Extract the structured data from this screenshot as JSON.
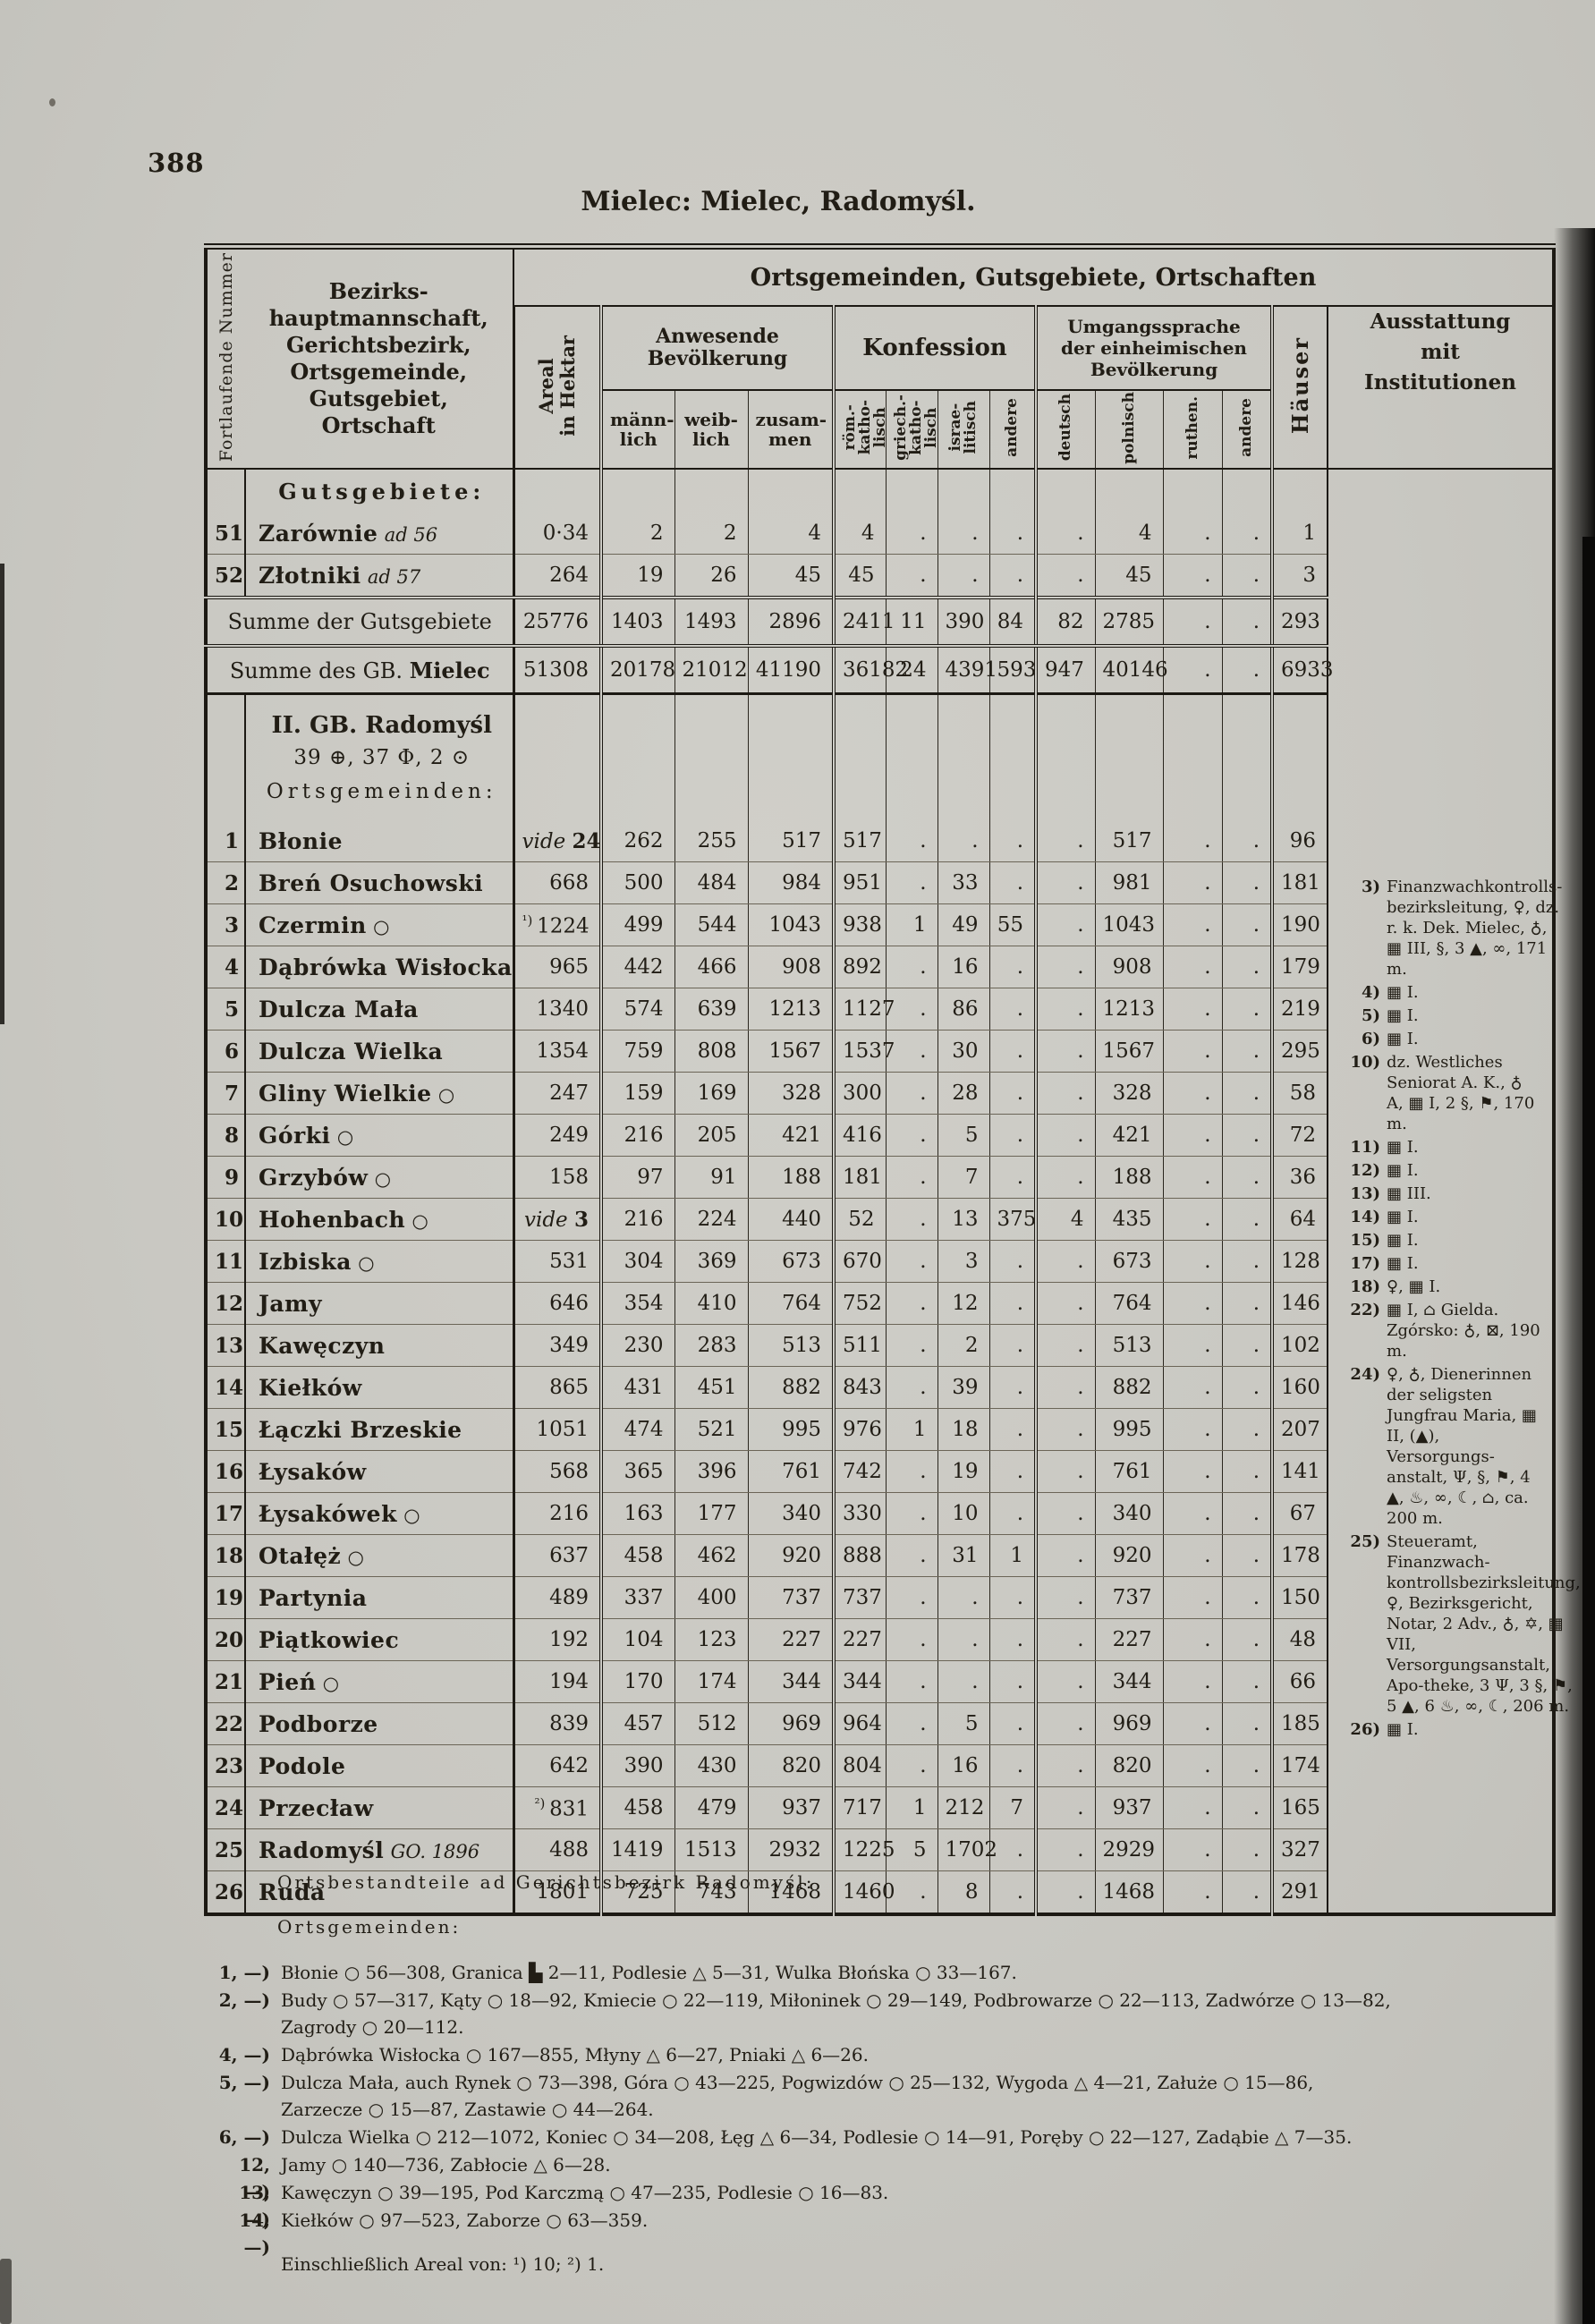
{
  "page": {
    "number": "388",
    "title": "Mielec: Mielec, Radomyśl."
  },
  "symbols": {
    "village-icon": "○",
    "hamlet-icon": "△",
    "manor-icon": "▙",
    "parish-office-icon": "♀",
    "church-icon": "♁",
    "school-icon": "▦",
    "savings-icon": "§",
    "chapel-icon": "▲",
    "post-horn-icon": "∞",
    "telegraph-icon": "☾",
    "flag-icon": "⚑",
    "synagogue-icon": "✡",
    "market-icon": "Ψ",
    "fire-brigade-icon": "♨",
    "house-icon": "⌂",
    "mail-icon": "⊠",
    "commune-icon": "⊕",
    "locality-icon": "Φ",
    "estate-icon": "⊙"
  },
  "table": {
    "header": {
      "nr_label": "Fortlaufende Nummer",
      "name_label": "Bezirks-\nhauptmannschaft,\nGerichtsbezirk,\nOrtsgemeinde,\nGutsgebiet,\nOrtschaft",
      "span_title": "Ortsgemeinden, Gutsgebiete, Ortschaften",
      "areal_label": "Areal\nin Hektar",
      "bev_group": "Anwesende\nBevölkerung",
      "bev_cols": [
        "männ-\nlich",
        "weib-\nlich",
        "zusam-\nmen"
      ],
      "konf_group": "Konfession",
      "konf_cols": [
        "röm.-\nkatho-\nlisch",
        "griech.-\nkatho-\nlisch",
        "israe-\nlitisch",
        "andere"
      ],
      "spr_group": "Umgangssprache\nder einheimischen\nBevölkerung",
      "spr_cols": [
        "deutsch",
        "polnisch",
        "ruthen.",
        "andere"
      ],
      "haeuser_label": "Häuser",
      "ausst_label": "Ausstattung\nmit\nInstitutionen"
    },
    "body": [
      {
        "kind": "label",
        "text": "Gutsgebiete:"
      },
      {
        "kind": "data",
        "nr": "51",
        "name": "Zarównie",
        "name_note": "ad 56",
        "areal": "0·34",
        "vals": [
          "2",
          "2",
          "4",
          "4",
          ".",
          ".",
          ".",
          ".",
          "4",
          ".",
          ".",
          "1"
        ]
      },
      {
        "kind": "data",
        "nr": "52",
        "name": "Złotniki",
        "name_note": "ad 57",
        "areal": "264",
        "vals": [
          "19",
          "26",
          "45",
          "45",
          ".",
          ".",
          ".",
          ".",
          "45",
          ".",
          ".",
          "3"
        ]
      },
      {
        "kind": "sum",
        "cls": "sum1",
        "label_prefix": "Summe der Gutsgebiete",
        "label_bold": "",
        "areal": "25776",
        "vals": [
          "1403",
          "1493",
          "2896",
          "2411",
          "11",
          "390",
          "84",
          "82",
          "2785",
          ".",
          ".",
          "293"
        ]
      },
      {
        "kind": "sum",
        "cls": "sum2",
        "label_prefix": "Summe des GB. ",
        "label_bold": "Mielec",
        "areal": "51308",
        "vals": [
          "20178",
          "21012",
          "41190",
          "36182",
          "24",
          "4391",
          "593",
          "947",
          "40146",
          ".",
          ".",
          "6933"
        ]
      },
      {
        "kind": "secblock",
        "lines": [
          "II. GB. Radomyśl",
          "39 ⊕, 37 Φ, 2 ⊙",
          "Ortsgemeinden:"
        ]
      },
      {
        "kind": "data",
        "nr": "1",
        "name": "Błonie",
        "areal_vide": "24",
        "vals": [
          "262",
          "255",
          "517",
          "517",
          ".",
          ".",
          ".",
          ".",
          "517",
          ".",
          ".",
          "96"
        ]
      },
      {
        "kind": "data",
        "nr": "2",
        "name": "Breń Osuchowski",
        "areal": "668",
        "vals": [
          "500",
          "484",
          "984",
          "951",
          ".",
          "33",
          ".",
          ".",
          "981",
          ".",
          ".",
          "181"
        ]
      },
      {
        "kind": "data",
        "nr": "3",
        "name": "Czermin",
        "suffix": "○",
        "areal_prefix": "¹) ",
        "areal": "1224",
        "vals": [
          "499",
          "544",
          "1043",
          "938",
          "1",
          "49",
          "55",
          ".",
          "1043",
          ".",
          ".",
          "190"
        ]
      },
      {
        "kind": "data",
        "nr": "4",
        "name": "Dąbrówka Wisłocka",
        "areal": "965",
        "vals": [
          "442",
          "466",
          "908",
          "892",
          ".",
          "16",
          ".",
          ".",
          "908",
          ".",
          ".",
          "179"
        ]
      },
      {
        "kind": "data",
        "nr": "5",
        "name": "Dulcza Mała",
        "areal": "1340",
        "vals": [
          "574",
          "639",
          "1213",
          "1127",
          ".",
          "86",
          ".",
          ".",
          "1213",
          ".",
          ".",
          "219"
        ]
      },
      {
        "kind": "data",
        "nr": "6",
        "name": "Dulcza Wielka",
        "areal": "1354",
        "vals": [
          "759",
          "808",
          "1567",
          "1537",
          ".",
          "30",
          ".",
          ".",
          "1567",
          ".",
          ".",
          "295"
        ]
      },
      {
        "kind": "data",
        "nr": "7",
        "name": "Gliny Wielkie",
        "suffix": "○",
        "areal": "247",
        "vals": [
          "159",
          "169",
          "328",
          "300",
          ".",
          "28",
          ".",
          ".",
          "328",
          ".",
          ".",
          "58"
        ]
      },
      {
        "kind": "data",
        "nr": "8",
        "name": "Górki",
        "suffix": "○",
        "areal": "249",
        "vals": [
          "216",
          "205",
          "421",
          "416",
          ".",
          "5",
          ".",
          ".",
          "421",
          ".",
          ".",
          "72"
        ]
      },
      {
        "kind": "data",
        "nr": "9",
        "name": "Grzybów",
        "suffix": "○",
        "areal": "158",
        "vals": [
          "97",
          "91",
          "188",
          "181",
          ".",
          "7",
          ".",
          ".",
          "188",
          ".",
          ".",
          "36"
        ]
      },
      {
        "kind": "data",
        "nr": "10",
        "name": "Hohenbach",
        "suffix": "○",
        "areal_vide": "3",
        "vals": [
          "216",
          "224",
          "440",
          "52",
          ".",
          "13",
          "375",
          "4",
          "435",
          ".",
          ".",
          "64"
        ]
      },
      {
        "kind": "data",
        "nr": "11",
        "name": "Izbiska",
        "suffix": "○",
        "areal": "531",
        "vals": [
          "304",
          "369",
          "673",
          "670",
          ".",
          "3",
          ".",
          ".",
          "673",
          ".",
          ".",
          "128"
        ]
      },
      {
        "kind": "data",
        "nr": "12",
        "name": "Jamy",
        "areal": "646",
        "vals": [
          "354",
          "410",
          "764",
          "752",
          ".",
          "12",
          ".",
          ".",
          "764",
          ".",
          ".",
          "146"
        ]
      },
      {
        "kind": "data",
        "nr": "13",
        "name": "Kawęczyn",
        "areal": "349",
        "vals": [
          "230",
          "283",
          "513",
          "511",
          ".",
          "2",
          ".",
          ".",
          "513",
          ".",
          ".",
          "102"
        ]
      },
      {
        "kind": "data",
        "nr": "14",
        "name": "Kiełków",
        "areal": "865",
        "vals": [
          "431",
          "451",
          "882",
          "843",
          ".",
          "39",
          ".",
          ".",
          "882",
          ".",
          ".",
          "160"
        ]
      },
      {
        "kind": "data",
        "nr": "15",
        "name": "Łączki Brzeskie",
        "areal": "1051",
        "vals": [
          "474",
          "521",
          "995",
          "976",
          "1",
          "18",
          ".",
          ".",
          "995",
          ".",
          ".",
          "207"
        ]
      },
      {
        "kind": "data",
        "nr": "16",
        "name": "Łysaków",
        "areal": "568",
        "vals": [
          "365",
          "396",
          "761",
          "742",
          ".",
          "19",
          ".",
          ".",
          "761",
          ".",
          ".",
          "141"
        ]
      },
      {
        "kind": "data",
        "nr": "17",
        "name": "Łysakówek",
        "suffix": "○",
        "areal": "216",
        "vals": [
          "163",
          "177",
          "340",
          "330",
          ".",
          "10",
          ".",
          ".",
          "340",
          ".",
          ".",
          "67"
        ]
      },
      {
        "kind": "data",
        "nr": "18",
        "name": "Otałęż",
        "suffix": "○",
        "areal": "637",
        "vals": [
          "458",
          "462",
          "920",
          "888",
          ".",
          "31",
          "1",
          ".",
          "920",
          ".",
          ".",
          "178"
        ]
      },
      {
        "kind": "data",
        "nr": "19",
        "name": "Partynia",
        "areal": "489",
        "vals": [
          "337",
          "400",
          "737",
          "737",
          ".",
          ".",
          ".",
          ".",
          "737",
          ".",
          ".",
          "150"
        ]
      },
      {
        "kind": "data",
        "nr": "20",
        "name": "Piątkowiec",
        "areal": "192",
        "vals": [
          "104",
          "123",
          "227",
          "227",
          ".",
          ".",
          ".",
          ".",
          "227",
          ".",
          ".",
          "48"
        ]
      },
      {
        "kind": "data",
        "nr": "21",
        "name": "Pień",
        "suffix": "○",
        "areal": "194",
        "vals": [
          "170",
          "174",
          "344",
          "344",
          ".",
          ".",
          ".",
          ".",
          "344",
          ".",
          ".",
          "66"
        ]
      },
      {
        "kind": "data",
        "nr": "22",
        "name": "Podborze",
        "areal": "839",
        "vals": [
          "457",
          "512",
          "969",
          "964",
          ".",
          "5",
          ".",
          ".",
          "969",
          ".",
          ".",
          "185"
        ]
      },
      {
        "kind": "data",
        "nr": "23",
        "name": "Podole",
        "areal": "642",
        "vals": [
          "390",
          "430",
          "820",
          "804",
          ".",
          "16",
          ".",
          ".",
          "820",
          ".",
          ".",
          "174"
        ]
      },
      {
        "kind": "data",
        "nr": "24",
        "name": "Przecław",
        "areal_prefix": "²) ",
        "areal": "831",
        "vals": [
          "458",
          "479",
          "937",
          "717",
          "1",
          "212",
          "7",
          ".",
          "937",
          ".",
          ".",
          "165"
        ]
      },
      {
        "kind": "data",
        "nr": "25",
        "name": "Radomyśl",
        "name_note": "GO. 1896",
        "areal": "488",
        "vals": [
          "1419",
          "1513",
          "2932",
          "1225",
          "5",
          "1702",
          ".",
          ".",
          "2929",
          ".",
          ".",
          "327"
        ]
      },
      {
        "kind": "data",
        "nr": "26",
        "name": "Ruda",
        "areal": "1801",
        "vals": [
          "725",
          "743",
          "1468",
          "1460",
          ".",
          "8",
          ".",
          ".",
          "1468",
          ".",
          ".",
          "291"
        ]
      }
    ]
  },
  "notes": {
    "items": [
      {
        "num": "3)",
        "text": "Finanzwachkontrolls-bezirksleitung, ♀, dz. r. k. Dek. Mielec, ♁, ▦ III, §, 3 ▲, ∞, 171 m."
      },
      {
        "num": "4)",
        "text": "▦ I."
      },
      {
        "num": "5)",
        "text": "▦ I."
      },
      {
        "num": "6)",
        "text": "▦ I."
      },
      {
        "num": "10)",
        "text": "dz. Westliches Seniorat A. K., ♁ A, ▦ I, 2 §, ⚑, 170 m."
      },
      {
        "num": "11)",
        "text": "▦ I."
      },
      {
        "num": "12)",
        "text": "▦ I."
      },
      {
        "num": "13)",
        "text": "▦ III."
      },
      {
        "num": "14)",
        "text": "▦ I."
      },
      {
        "num": "15)",
        "text": "▦ I."
      },
      {
        "num": "17)",
        "text": "▦ I."
      },
      {
        "num": "18)",
        "text": "♀, ▦ I."
      },
      {
        "num": "22)",
        "text": "▦ I, ⌂ Gielda.\nZgórsko: ♁, ⊠, 190 m."
      },
      {
        "num": "24)",
        "text": "♀, ♁, Dienerinnen der seligsten Jungfrau Maria, ▦ II, (▲), Versorgungs-anstalt, Ψ, §, ⚑, 4 ▲, ♨, ∞, ☾, ⌂, ca. 200 m."
      },
      {
        "num": "25)",
        "text": "Steueramt, Finanzwach-kontrollsbezirksleitung, ♀, Bezirksgericht, Notar, 2 Adv., ♁, ✡, ▦ VII, Versorgungsanstalt, Apo-theke, 3 Ψ, 3 §, ⚑, 5 ▲, 6 ♨, ∞, ☾, 206 m."
      },
      {
        "num": "26)",
        "text": "▦ I."
      }
    ]
  },
  "footer": {
    "heading": "Ortsbestandteile ad Gerichtsbezirk Radomyśl:",
    "subheading": "Ortsgemeinden:",
    "items": [
      {
        "num": "1, —)",
        "text": "Błonie ○ 56—308, Granica ▙ 2—11, Podlesie △ 5—31, Wulka Błońska ○ 33—167."
      },
      {
        "num": "2, —)",
        "text": "Budy ○ 57—317, Kąty ○ 18—92, Kmiecie ○ 22—119, Miłoninek ○ 29—149, Podbrowarze ○ 22—113, Zadwórze ○ 13—82, Zagrody ○ 20—112."
      },
      {
        "num": "4, —)",
        "text": "Dąbrówka Wisłocka ○ 167—855, Młyny △ 6—27, Pniaki △ 6—26."
      },
      {
        "num": "5, —)",
        "text": "Dulcza Mała, auch Rynek ○ 73—398, Góra ○ 43—225, Pogwizdów ○ 25—132, Wygoda △ 4—21, Załuże ○ 15—86, Zarzecze ○ 15—87, Zastawie ○ 44—264."
      },
      {
        "num": "6, —)",
        "text": "Dulcza Wielka ○ 212—1072, Koniec ○ 34—208, Łęg △ 6—34, Podlesie ○ 14—91, Poręby ○ 22—127, Zadąbie △ 7—35."
      },
      {
        "num": "12, —)",
        "text": "Jamy ○ 140—736, Zabłocie △ 6—28."
      },
      {
        "num": "13, —)",
        "text": "Kawęczyn ○ 39—195, Pod Karczmą ○ 47—235, Podlesie ○ 16—83."
      },
      {
        "num": "14, —)",
        "text": "Kiełków ○ 97—523, Zaborze ○ 63—359."
      }
    ],
    "final_note": "Einschließlich Areal von: ¹) 10; ²) 1."
  }
}
